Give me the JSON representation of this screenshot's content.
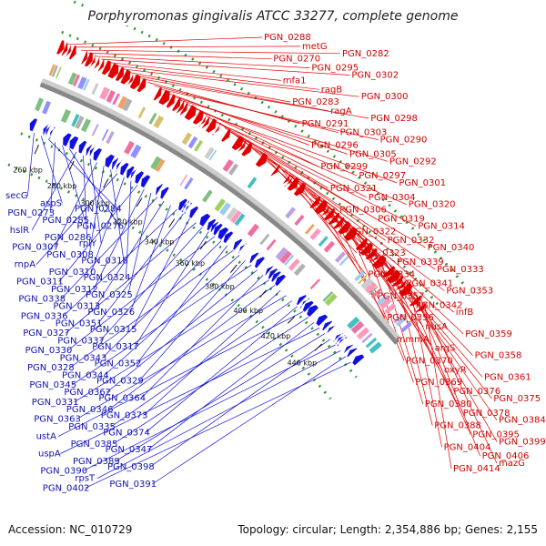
{
  "title": "Porphyromonas gingivalis ATCC 33277, complete genome",
  "accession": "Accession: NC_010729",
  "summary": "Topology: circular; Length: 2,354,886 bp; Genes: 2,155",
  "colors": {
    "forward": "#e00000",
    "reverse": "#1010e0",
    "backbone": "#888888",
    "dots": "#2e9a2e"
  },
  "ticks": [
    "260 kbp",
    "280 kbp",
    "300 kbp",
    "320 kbp",
    "340 kbp",
    "360 kbp",
    "380 kbp",
    "400 kbp",
    "420 kbp",
    "440 kbp"
  ],
  "forward_labels": [
    "PGN_0288",
    "metG",
    "PGN_0282",
    "PGN_0270",
    "PGN_0295",
    "PGN_0302",
    "mfa1",
    "ragB",
    "PGN_0300",
    "PGN_0283",
    "ragA",
    "PGN_0298",
    "PGN_0291",
    "PGN_0303",
    "PGN_0290",
    "PGN_0296",
    "PGN_0305",
    "PGN_0292",
    "PGN_0299",
    "PGN_0297",
    "PGN_0301",
    "PGN_0321",
    "PGN_0304",
    "PGN_0320",
    "PGN_0306",
    "PGN_0319",
    "PGN_0314",
    "PGN_0322",
    "PGN_0332",
    "PGN_0340",
    "PGN_0323",
    "PGN_0339",
    "PGN_0333",
    "PGN_0334",
    "PGN_0341",
    "PGN_0353",
    "PGN_0357",
    "PGN_0342",
    "infB",
    "PGN_0356",
    "nusA",
    "PGN_0359",
    "mmmA",
    "argS",
    "PGN_0358",
    "PGN_0370",
    "oxyR",
    "PGN_0361",
    "PGN_0369",
    "PGN_0376",
    "PGN_0375",
    "PGN_0380",
    "PGN_0378",
    "PGN_0384",
    "PGN_0388",
    "PGN_0395",
    "PGN_0399",
    "PGN_0404",
    "PGN_0406",
    "mazG",
    "PGN_0414"
  ],
  "reverse_labels": [
    "secG",
    "aspS",
    "PGN_0284",
    "PGN_0273",
    "PGN_0285",
    "PGN_0276",
    "hslR",
    "PGN_0286",
    "rplY",
    "PGN_0307",
    "PGN_0308",
    "PGN_0318",
    "rnpA",
    "PGN_0310",
    "PGN_0324",
    "PGN_0311",
    "PGN_0312",
    "PGN_0325",
    "PGN_0338",
    "PGN_0313",
    "PGN_0326",
    "PGN_0336",
    "PGN_0351",
    "PGN_0315",
    "PGN_0327",
    "PGN_0337",
    "PGN_0317",
    "PGN_0330",
    "PGN_0343",
    "PGN_0352",
    "PGN_0328",
    "PGN_0344",
    "PGN_0329",
    "PGN_0345",
    "PGN_0362",
    "PGN_0364",
    "PGN_0331",
    "PGN_0346",
    "PGN_0373",
    "PGN_0363",
    "PGN_0335",
    "PGN_0374",
    "ustA",
    "PGN_0385",
    "PGN_0347",
    "uspA",
    "PGN_0389",
    "PGN_0398",
    "PGN_0390",
    "rpsT",
    "PGN_0391",
    "PGN_0402"
  ]
}
